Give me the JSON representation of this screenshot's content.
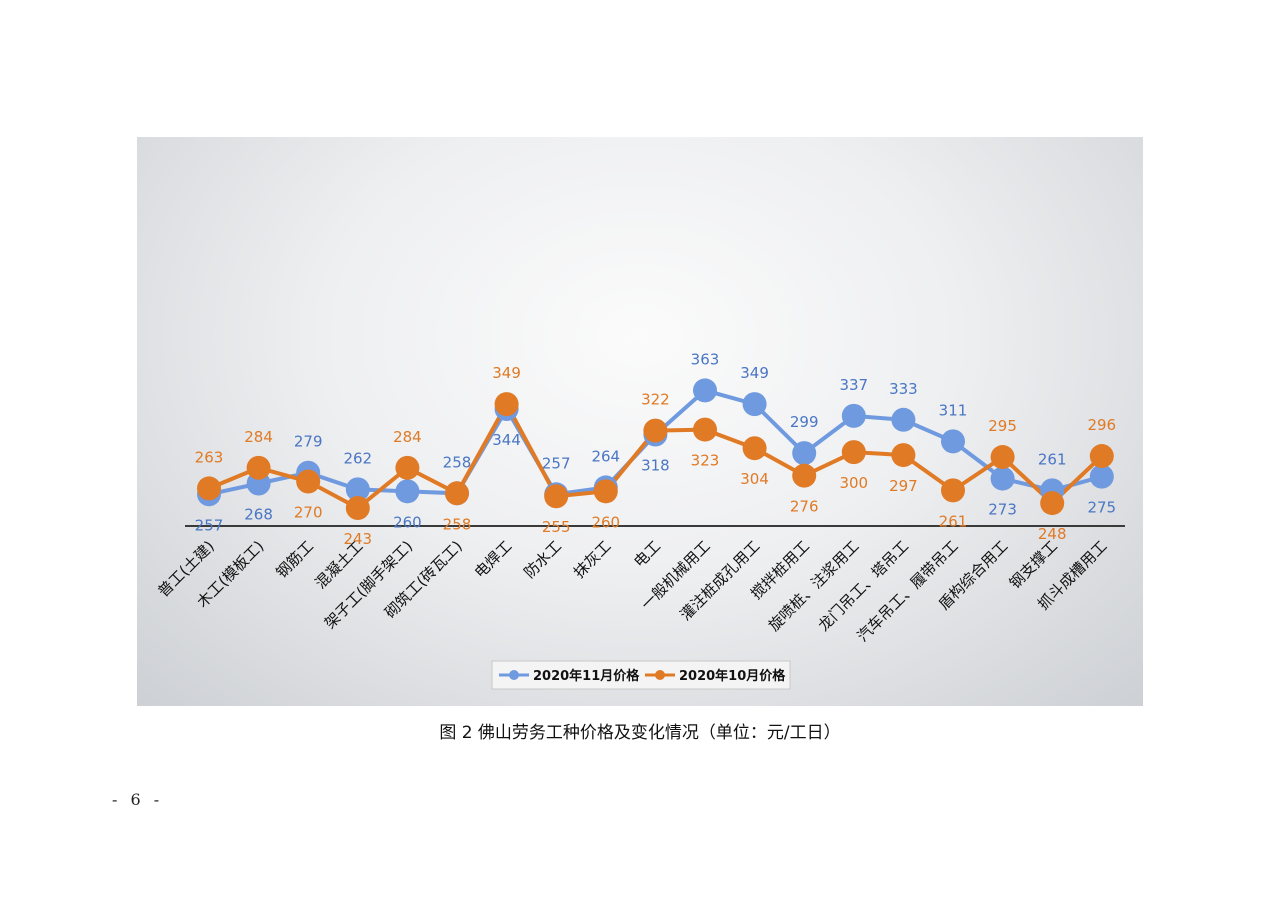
{
  "figure": {
    "caption": "图 2   佛山劳务工种价格及变化情况（单位：元/工日）",
    "page_number": "- 6 -"
  },
  "chart_data": {
    "type": "line",
    "categories": [
      "普工(土建)",
      "木工(模板工)",
      "钢筋工",
      "混凝土工",
      "架子工(脚手架工)",
      "砌筑工(砖瓦工)",
      "电焊工",
      "防水工",
      "抹灰工",
      "电工",
      "一般机械用工",
      "灌注桩成孔用工",
      "搅拌桩用工",
      "旋喷桩、注浆用工",
      "龙门吊工、塔吊工",
      "汽车吊工、履带吊工",
      "盾构综合用工",
      "钢支撑工",
      "抓斗成槽用工"
    ],
    "series": [
      {
        "name": "2020年11月价格",
        "color": "#6f9ae0",
        "values": [
          257,
          268,
          279,
          262,
          260,
          258,
          344,
          257,
          264,
          318,
          363,
          349,
          299,
          337,
          333,
          311,
          273,
          261,
          275
        ]
      },
      {
        "name": "2020年10月价格",
        "color": "#e07a25",
        "values": [
          263,
          284,
          270,
          243,
          284,
          258,
          349,
          255,
          260,
          322,
          323,
          304,
          276,
          300,
          297,
          261,
          295,
          248,
          296
        ]
      }
    ],
    "legend_position": "bottom",
    "grid": false
  }
}
